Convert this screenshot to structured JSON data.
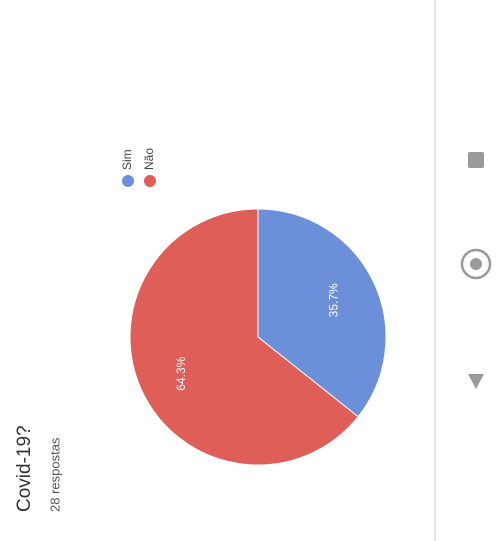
{
  "chart_data": {
    "type": "pie",
    "title": "Covid-19?",
    "subtitle": "28 respostas",
    "categories": [
      "Sim",
      "Não"
    ],
    "values": [
      35.7,
      64.3
    ],
    "value_labels": [
      "35.7%",
      "64.3%"
    ],
    "colors": [
      "#6b8fd9",
      "#df5f58"
    ]
  }
}
